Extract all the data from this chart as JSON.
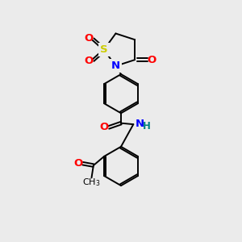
{
  "bg_color": "#ebebeb",
  "bond_color": "#000000",
  "S_color": "#cccc00",
  "N_color": "#0000ff",
  "O_color": "#ff0000",
  "NH_color": "#008080",
  "figsize": [
    3.0,
    3.0
  ],
  "dpi": 100,
  "xlim": [
    0,
    10
  ],
  "ylim": [
    0,
    10
  ]
}
